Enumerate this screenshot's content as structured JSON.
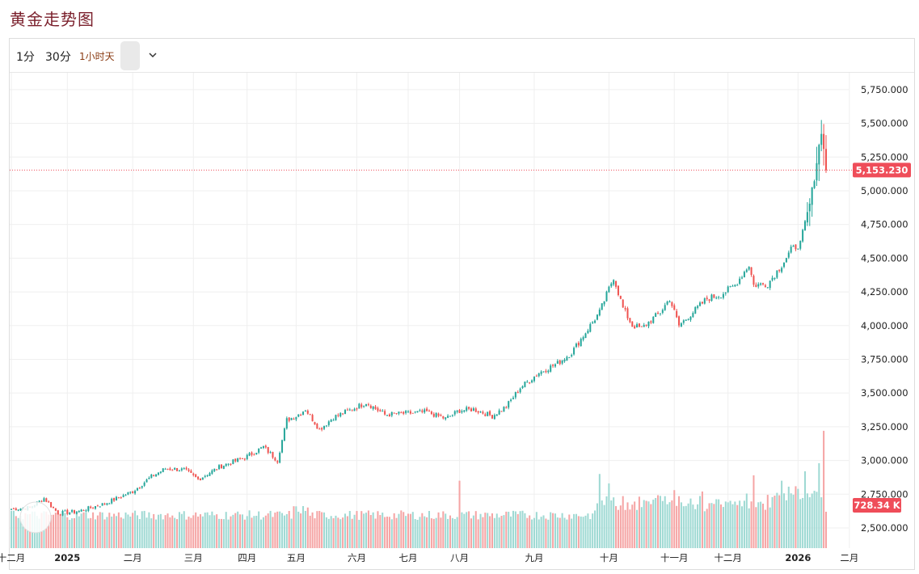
{
  "page": {
    "title": "黄金走势图"
  },
  "toolbar": {
    "interval_1m": "1分",
    "interval_30m": "30分",
    "interval_active": "1小时天"
  },
  "colors": {
    "up": "#26a69a",
    "down": "#ef5350",
    "up_vol": "#9ed9d3",
    "down_vol": "#f5a4a4",
    "badge": "#ef4d59",
    "grid": "#efefef"
  },
  "chart_data": {
    "type": "candlestick",
    "title": "黄金走势图",
    "y_axis": {
      "min": 2350,
      "max": 5875,
      "ticks": [
        "5,750.000",
        "5,500.000",
        "5,250.000",
        "5,000.000",
        "4,750.000",
        "4,500.000",
        "4,250.000",
        "4,000.000",
        "3,750.000",
        "3,500.000",
        "3,250.000",
        "3,000.000",
        "2,750.000",
        "2,500.000"
      ],
      "tick_values": [
        5750,
        5500,
        5250,
        5000,
        4750,
        4500,
        4250,
        4000,
        3750,
        3500,
        3250,
        3000,
        2750,
        2500
      ]
    },
    "x_axis": {
      "labels": [
        "十二月",
        "2025",
        "二月",
        "三月",
        "四月",
        "五月",
        "六月",
        "七月",
        "八月",
        "九月",
        "十月",
        "十一月",
        "十二月",
        "2026",
        "二月"
      ],
      "bold": [
        false,
        true,
        false,
        false,
        false,
        false,
        false,
        false,
        false,
        false,
        false,
        false,
        false,
        true,
        false
      ],
      "label_index": [
        0,
        24,
        52,
        78,
        101,
        122,
        148,
        170,
        192,
        224,
        256,
        284,
        307,
        337,
        359
      ]
    },
    "last_price": 5153.23,
    "last_price_label": "5,153.230",
    "volume_label": "728.34 K",
    "anchor_closes": [
      [
        0,
        2640
      ],
      [
        8,
        2650
      ],
      [
        14,
        2720
      ],
      [
        20,
        2610
      ],
      [
        28,
        2620
      ],
      [
        40,
        2680
      ],
      [
        52,
        2770
      ],
      [
        60,
        2880
      ],
      [
        66,
        2940
      ],
      [
        74,
        2930
      ],
      [
        80,
        2860
      ],
      [
        90,
        2960
      ],
      [
        100,
        3020
      ],
      [
        108,
        3100
      ],
      [
        114,
        3000
      ],
      [
        118,
        3300
      ],
      [
        122,
        3330
      ],
      [
        126,
        3380
      ],
      [
        132,
        3230
      ],
      [
        138,
        3320
      ],
      [
        146,
        3380
      ],
      [
        152,
        3430
      ],
      [
        160,
        3340
      ],
      [
        170,
        3350
      ],
      [
        178,
        3360
      ],
      [
        186,
        3310
      ],
      [
        192,
        3370
      ],
      [
        198,
        3380
      ],
      [
        206,
        3330
      ],
      [
        212,
        3400
      ],
      [
        218,
        3540
      ],
      [
        226,
        3650
      ],
      [
        234,
        3720
      ],
      [
        240,
        3800
      ],
      [
        248,
        4000
      ],
      [
        252,
        4100
      ],
      [
        258,
        4360
      ],
      [
        262,
        4130
      ],
      [
        266,
        4000
      ],
      [
        270,
        3980
      ],
      [
        278,
        4100
      ],
      [
        282,
        4200
      ],
      [
        286,
        4000
      ],
      [
        292,
        4100
      ],
      [
        298,
        4200
      ],
      [
        304,
        4230
      ],
      [
        310,
        4300
      ],
      [
        316,
        4450
      ],
      [
        318,
        4300
      ],
      [
        324,
        4310
      ],
      [
        330,
        4450
      ],
      [
        334,
        4560
      ],
      [
        338,
        4610
      ],
      [
        342,
        4900
      ],
      [
        344,
        5100
      ],
      [
        347,
        5450
      ],
      [
        349,
        5153
      ]
    ],
    "volume_spikes": [
      [
        192,
        2850
      ],
      [
        252,
        2900
      ],
      [
        256,
        2830
      ],
      [
        284,
        2780
      ],
      [
        296,
        2770
      ],
      [
        318,
        2890
      ],
      [
        330,
        2850
      ],
      [
        340,
        2920
      ],
      [
        346,
        2980
      ],
      [
        348,
        3220
      ],
      [
        349,
        2620
      ]
    ]
  }
}
